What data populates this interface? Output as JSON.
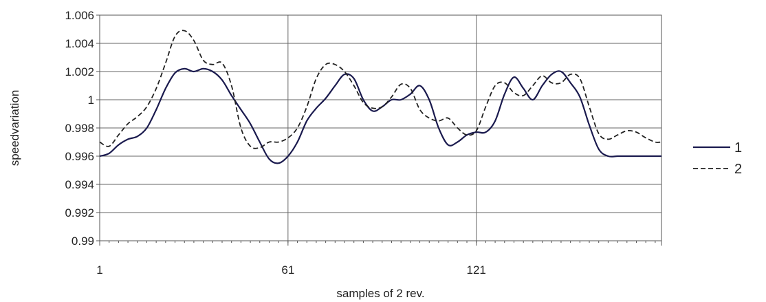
{
  "chart_data": {
    "type": "line",
    "title": "",
    "xlabel": "samples of 2 rev.",
    "ylabel": "speedvariation",
    "xlim": [
      1,
      180
    ],
    "ylim": [
      0.99,
      1.006
    ],
    "y_ticks": [
      "0.99",
      "0.992",
      "0.994",
      "0.996",
      "0.998",
      "1",
      "1.002",
      "1.004",
      "1.006"
    ],
    "x_ticks": [
      "1",
      "61",
      "121"
    ],
    "grid": "on",
    "legend_position": "right",
    "series": [
      {
        "name": "1",
        "color": "#1a1a4e",
        "dash": "solid",
        "x": [
          1,
          4,
          7,
          10,
          13,
          16,
          19,
          22,
          25,
          28,
          31,
          34,
          37,
          40,
          43,
          46,
          49,
          52,
          55,
          58,
          61,
          64,
          67,
          70,
          73,
          76,
          79,
          82,
          85,
          88,
          91,
          94,
          97,
          100,
          103,
          106,
          109,
          112,
          115,
          118,
          121,
          124,
          127,
          130,
          133,
          136,
          139,
          142,
          145,
          148,
          151,
          154,
          157,
          160,
          163,
          166,
          169,
          172,
          175,
          178,
          180
        ],
        "y": [
          0.996,
          0.9962,
          0.9968,
          0.9972,
          0.9974,
          0.998,
          0.9993,
          1.0008,
          1.0019,
          1.0022,
          1.002,
          1.0022,
          1.002,
          1.0014,
          1.0003,
          0.9993,
          0.9983,
          0.997,
          0.9958,
          0.9955,
          0.996,
          0.997,
          0.9985,
          0.9994,
          1.0001,
          1.001,
          1.0018,
          1.0015,
          1.0,
          0.9992,
          0.9995,
          1.0,
          1.0,
          1.0004,
          1.001,
          1.0,
          0.998,
          0.9968,
          0.997,
          0.9975,
          0.9977,
          0.9977,
          0.9985,
          1.0004,
          1.0016,
          1.0008,
          1.0,
          1.001,
          1.0018,
          1.002,
          1.0012,
          1.0002,
          0.9982,
          0.9965,
          0.996,
          0.996,
          0.996,
          0.996,
          0.996,
          0.996,
          0.996
        ]
      },
      {
        "name": "2",
        "color": "#222222",
        "dash": "dashed",
        "x": [
          1,
          4,
          7,
          10,
          13,
          16,
          19,
          22,
          25,
          28,
          31,
          34,
          37,
          40,
          43,
          46,
          49,
          52,
          55,
          58,
          61,
          64,
          67,
          70,
          73,
          76,
          79,
          82,
          85,
          88,
          91,
          94,
          97,
          100,
          103,
          106,
          109,
          112,
          115,
          118,
          121,
          124,
          127,
          130,
          133,
          136,
          139,
          142,
          145,
          148,
          151,
          154,
          157,
          160,
          163,
          166,
          169,
          172,
          175,
          178,
          180
        ],
        "y": [
          0.997,
          0.9967,
          0.9975,
          0.9983,
          0.9988,
          0.9995,
          1.0008,
          1.0026,
          1.0045,
          1.0049,
          1.0042,
          1.0028,
          1.0025,
          1.0026,
          1.001,
          0.998,
          0.9967,
          0.9966,
          0.997,
          0.997,
          0.9973,
          0.998,
          0.9995,
          1.0015,
          1.0025,
          1.0025,
          1.002,
          1.001,
          0.9998,
          0.9994,
          0.9995,
          1.0002,
          1.0011,
          1.0008,
          0.9993,
          0.9987,
          0.9985,
          0.9987,
          0.998,
          0.9975,
          0.9978,
          0.9995,
          1.001,
          1.0012,
          1.0005,
          1.0003,
          1.001,
          1.0017,
          1.0012,
          1.0012,
          1.0018,
          1.0015,
          0.9995,
          0.9976,
          0.9972,
          0.9975,
          0.9978,
          0.9977,
          0.9973,
          0.997,
          0.997
        ]
      }
    ]
  }
}
